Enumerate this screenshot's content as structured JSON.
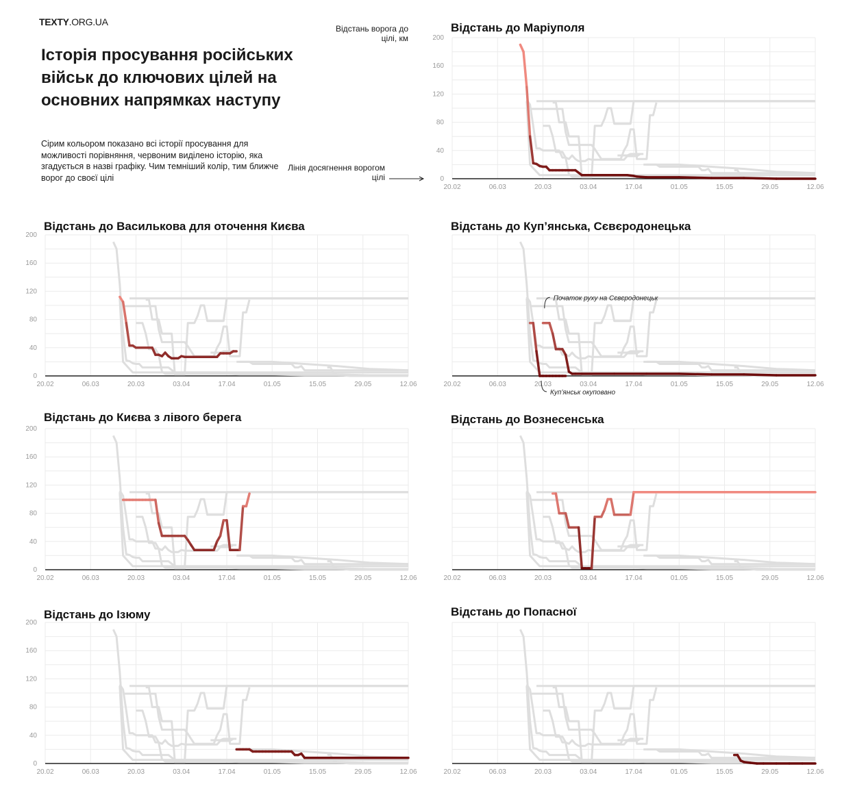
{
  "header": {
    "logo_bold": "TEXTY",
    "logo_rest": ".ORG.UA",
    "title": "Історія просування російських військ до ключових цілей на основних напрямках наступу",
    "subtitle": "Сірим кольором показано всі історії просування для можливості порівняння, червоним виділено історію, яка згадується в назві графіку. Чим темніший колір, тим ближче ворог до своєї цілі",
    "units_note": "Відстань ворога до цілі, км",
    "finish_line_note": "Лінія досягнення ворогом цілі"
  },
  "colors": {
    "background": "#ffffff",
    "grid": "#ebebeb",
    "baseline": "#222222",
    "context_series": "#dedede",
    "highlight_far": "#f08a80",
    "highlight_near": "#6b0a0a"
  },
  "chart_data": [
    {
      "type": "line",
      "title": "Відстань до Маріуполя",
      "highlight": "Маріуполь",
      "ylim": [
        0,
        200
      ],
      "yticks": [
        "200",
        "160",
        "120",
        "80",
        "40",
        "0"
      ],
      "xticks": [
        "20.02",
        "06.03",
        "20.03",
        "03.04",
        "17.04",
        "01.05",
        "15.05",
        "29.05",
        "12.06"
      ],
      "show_yticks": true,
      "annotations": []
    },
    {
      "type": "line",
      "title": "Відстань до Василькова для оточення Києва",
      "highlight": "Васильків",
      "ylim": [
        0,
        200
      ],
      "yticks": [
        "200",
        "160",
        "120",
        "80",
        "40",
        "0"
      ],
      "xticks": [
        "20.02",
        "06.03",
        "20.03",
        "03.04",
        "17.04",
        "01.05",
        "15.05",
        "29.05",
        "12.06"
      ],
      "show_yticks": true,
      "annotations": []
    },
    {
      "type": "line",
      "title": "Відстань до Куп’янська, Сєвєродонецька",
      "highlight": "Куп’янськ, Сєвєродонецьк",
      "ylim": [
        0,
        200
      ],
      "yticks": [],
      "xticks": [
        "20.02",
        "06.03",
        "20.03",
        "03.04",
        "17.04",
        "01.05",
        "15.05",
        "29.05",
        "12.06"
      ],
      "show_yticks": false,
      "annotations": [
        {
          "text": "Початок руху на Сєвєродонецьк",
          "x": 27,
          "y": 90,
          "pos": "above"
        },
        {
          "text": "Куп’янськ окуповано",
          "x": 26,
          "y": 0,
          "pos": "below"
        }
      ]
    },
    {
      "type": "line",
      "title": "Відстань до Києва з лівого берега",
      "highlight": "Київ (лівий берег)",
      "ylim": [
        0,
        200
      ],
      "yticks": [
        "200",
        "160",
        "120",
        "80",
        "40",
        "0"
      ],
      "xticks": [
        "20.02",
        "06.03",
        "20.03",
        "03.04",
        "17.04",
        "01.05",
        "15.05",
        "29.05",
        "12.06"
      ],
      "show_yticks": true,
      "annotations": []
    },
    {
      "type": "line",
      "title": "Відстань до Вознесенська",
      "highlight": "Вознесенськ",
      "ylim": [
        0,
        200
      ],
      "yticks": [],
      "xticks": [
        "20.02",
        "06.03",
        "20.03",
        "03.04",
        "17.04",
        "01.05",
        "15.05",
        "29.05",
        "12.06"
      ],
      "show_yticks": false,
      "annotations": []
    },
    {
      "type": "line",
      "title": "Відстань до Ізюму",
      "highlight": "Ізюм",
      "ylim": [
        0,
        200
      ],
      "yticks": [
        "200",
        "160",
        "120",
        "80",
        "40",
        "0"
      ],
      "xticks": [
        "20.02",
        "06.03",
        "20.03",
        "03.04",
        "17.04",
        "01.05",
        "15.05",
        "29.05",
        "12.06"
      ],
      "show_yticks": true,
      "annotations": []
    },
    {
      "type": "line",
      "title": "Відстань до Попасної",
      "highlight": "Попасна",
      "ylim": [
        0,
        200
      ],
      "yticks": [],
      "xticks": [
        "20.02",
        "06.03",
        "20.03",
        "03.04",
        "17.04",
        "01.05",
        "15.05",
        "29.05",
        "12.06"
      ],
      "show_yticks": false,
      "annotations": []
    }
  ],
  "series_data": {
    "x_note": "days since 20.02 (x=0 is 20.02, x=112 is 12.06)",
    "Маріуполь": [
      [
        21,
        190
      ],
      [
        22,
        180
      ],
      [
        23,
        130
      ],
      [
        24,
        60
      ],
      [
        25,
        22
      ],
      [
        26,
        21
      ],
      [
        27,
        18
      ],
      [
        28,
        17
      ],
      [
        29,
        17
      ],
      [
        30,
        12
      ],
      [
        31,
        12
      ],
      [
        32,
        12
      ],
      [
        33,
        12
      ],
      [
        34,
        12
      ],
      [
        35,
        12
      ],
      [
        36,
        12
      ],
      [
        37,
        12
      ],
      [
        38,
        12
      ],
      [
        40,
        5
      ],
      [
        42,
        5
      ],
      [
        44,
        5
      ],
      [
        46,
        5
      ],
      [
        48,
        5
      ],
      [
        50,
        5
      ],
      [
        52,
        5
      ],
      [
        54,
        5
      ],
      [
        56,
        4
      ],
      [
        57,
        3
      ],
      [
        60,
        2
      ],
      [
        70,
        2
      ],
      [
        80,
        1
      ],
      [
        90,
        1
      ],
      [
        100,
        0
      ],
      [
        112,
        0
      ]
    ],
    "Васильків": [
      [
        23,
        112
      ],
      [
        24,
        105
      ],
      [
        25,
        75
      ],
      [
        26,
        43
      ],
      [
        27,
        43
      ],
      [
        28,
        40
      ],
      [
        29,
        40
      ],
      [
        30,
        40
      ],
      [
        31,
        40
      ],
      [
        32,
        40
      ],
      [
        33,
        40
      ],
      [
        34,
        30
      ],
      [
        35,
        30
      ],
      [
        36,
        28
      ],
      [
        37,
        33
      ],
      [
        38,
        28
      ],
      [
        39,
        25
      ],
      [
        40,
        25
      ],
      [
        41,
        25
      ],
      [
        42,
        28
      ],
      [
        43,
        27
      ],
      [
        44,
        27
      ],
      [
        45,
        27
      ],
      [
        46,
        27
      ],
      [
        47,
        27
      ],
      [
        48,
        27
      ],
      [
        49,
        27
      ],
      [
        50,
        27
      ],
      [
        51,
        27
      ],
      [
        52,
        27
      ],
      [
        53,
        27
      ],
      [
        54,
        32
      ],
      [
        55,
        32
      ],
      [
        56,
        32
      ],
      [
        57,
        32
      ],
      [
        58,
        35
      ],
      [
        59,
        35
      ]
    ],
    "Куп’янськ, Сєвєродонецьк": [
      [
        24,
        75
      ],
      [
        25,
        75
      ],
      [
        26,
        35
      ],
      [
        27,
        0
      ],
      [
        28,
        0
      ],
      [
        29,
        0
      ],
      [
        30,
        0
      ],
      [
        31,
        0
      ],
      [
        32,
        0
      ],
      [
        33,
        0
      ],
      [
        34,
        0
      ],
      [
        35,
        0
      ]
    ],
    "Сєвєродонецьк": [
      [
        28,
        75
      ],
      [
        29,
        75
      ],
      [
        30,
        75
      ],
      [
        31,
        60
      ],
      [
        32,
        38
      ],
      [
        33,
        38
      ],
      [
        34,
        38
      ],
      [
        35,
        30
      ],
      [
        36,
        6
      ],
      [
        37,
        3
      ],
      [
        38,
        3
      ],
      [
        40,
        3
      ],
      [
        50,
        3
      ],
      [
        60,
        3
      ],
      [
        70,
        3
      ],
      [
        80,
        2
      ],
      [
        90,
        2
      ],
      [
        100,
        1
      ],
      [
        112,
        1
      ]
    ],
    "Київ (лівий берег)": [
      [
        24,
        99
      ],
      [
        25,
        99
      ],
      [
        26,
        99
      ],
      [
        27,
        99
      ],
      [
        28,
        99
      ],
      [
        29,
        99
      ],
      [
        30,
        99
      ],
      [
        31,
        99
      ],
      [
        32,
        99
      ],
      [
        33,
        99
      ],
      [
        34,
        99
      ],
      [
        35,
        66
      ],
      [
        36,
        48
      ],
      [
        37,
        48
      ],
      [
        38,
        48
      ],
      [
        39,
        48
      ],
      [
        40,
        48
      ],
      [
        41,
        48
      ],
      [
        42,
        48
      ],
      [
        43,
        48
      ],
      [
        44,
        42
      ],
      [
        45,
        35
      ],
      [
        46,
        28
      ],
      [
        47,
        28
      ],
      [
        48,
        28
      ],
      [
        49,
        28
      ],
      [
        50,
        28
      ],
      [
        51,
        28
      ],
      [
        52,
        28
      ],
      [
        53,
        40
      ],
      [
        54,
        48
      ],
      [
        55,
        70
      ],
      [
        56,
        70
      ],
      [
        57,
        28
      ],
      [
        58,
        28
      ],
      [
        59,
        28
      ],
      [
        60,
        28
      ],
      [
        61,
        90
      ],
      [
        62,
        90
      ],
      [
        63,
        108
      ]
    ],
    "Вознесенськ": [
      [
        31,
        108
      ],
      [
        32,
        108
      ],
      [
        33,
        80
      ],
      [
        34,
        80
      ],
      [
        35,
        80
      ],
      [
        36,
        60
      ],
      [
        37,
        60
      ],
      [
        38,
        60
      ],
      [
        39,
        60
      ],
      [
        40,
        2
      ],
      [
        41,
        2
      ],
      [
        42,
        2
      ],
      [
        43,
        2
      ],
      [
        44,
        75
      ],
      [
        45,
        75
      ],
      [
        46,
        75
      ],
      [
        47,
        85
      ],
      [
        48,
        100
      ],
      [
        49,
        100
      ],
      [
        50,
        78
      ],
      [
        51,
        78
      ],
      [
        52,
        78
      ],
      [
        53,
        78
      ],
      [
        54,
        78
      ],
      [
        55,
        78
      ],
      [
        56,
        110
      ],
      [
        58,
        110
      ],
      [
        60,
        110
      ],
      [
        62,
        110
      ],
      [
        64,
        110
      ],
      [
        66,
        110
      ],
      [
        68,
        110
      ],
      [
        70,
        110
      ],
      [
        72,
        110
      ],
      [
        74,
        110
      ],
      [
        76,
        110
      ],
      [
        78,
        110
      ],
      [
        80,
        110
      ],
      [
        82,
        110
      ],
      [
        84,
        110
      ],
      [
        86,
        110
      ],
      [
        88,
        110
      ],
      [
        90,
        110
      ],
      [
        92,
        110
      ],
      [
        94,
        110
      ],
      [
        96,
        110
      ],
      [
        98,
        110
      ],
      [
        100,
        110
      ],
      [
        102,
        110
      ],
      [
        104,
        110
      ],
      [
        106,
        110
      ],
      [
        108,
        110
      ],
      [
        110,
        110
      ],
      [
        112,
        110
      ]
    ],
    "Ізюм": [
      [
        59,
        20
      ],
      [
        60,
        20
      ],
      [
        61,
        20
      ],
      [
        62,
        20
      ],
      [
        63,
        20
      ],
      [
        64,
        17
      ],
      [
        65,
        17
      ],
      [
        66,
        17
      ],
      [
        67,
        17
      ],
      [
        68,
        17
      ],
      [
        69,
        17
      ],
      [
        70,
        17
      ],
      [
        71,
        17
      ],
      [
        72,
        17
      ],
      [
        73,
        17
      ],
      [
        74,
        17
      ],
      [
        75,
        17
      ],
      [
        76,
        17
      ],
      [
        77,
        12
      ],
      [
        78,
        12
      ],
      [
        79,
        14
      ],
      [
        80,
        8
      ],
      [
        81,
        8
      ],
      [
        82,
        8
      ],
      [
        84,
        8
      ],
      [
        88,
        8
      ],
      [
        92,
        8
      ],
      [
        96,
        8
      ],
      [
        100,
        8
      ],
      [
        104,
        8
      ],
      [
        108,
        8
      ],
      [
        112,
        8
      ]
    ],
    "Попасна": [
      [
        87,
        12
      ],
      [
        88,
        12
      ],
      [
        89,
        4
      ],
      [
        90,
        2
      ],
      [
        92,
        1
      ],
      [
        94,
        0
      ],
      [
        96,
        0
      ],
      [
        100,
        0
      ],
      [
        104,
        0
      ],
      [
        108,
        0
      ],
      [
        112,
        0
      ]
    ],
    "Other_A": [
      [
        26,
        110
      ],
      [
        27,
        110
      ],
      [
        28,
        110
      ],
      [
        29,
        110
      ],
      [
        30,
        110
      ],
      [
        31,
        110
      ],
      [
        32,
        110
      ],
      [
        33,
        110
      ],
      [
        34,
        110
      ],
      [
        35,
        110
      ],
      [
        36,
        110
      ],
      [
        37,
        110
      ],
      [
        38,
        110
      ],
      [
        39,
        110
      ],
      [
        40,
        110
      ],
      [
        41,
        110
      ],
      [
        42,
        110
      ],
      [
        43,
        110
      ],
      [
        44,
        110
      ],
      [
        45,
        110
      ],
      [
        46,
        110
      ],
      [
        47,
        110
      ],
      [
        48,
        110
      ],
      [
        49,
        110
      ],
      [
        50,
        110
      ],
      [
        51,
        110
      ],
      [
        52,
        110
      ],
      [
        53,
        110
      ],
      [
        54,
        110
      ],
      [
        55,
        110
      ],
      [
        56,
        110
      ],
      [
        57,
        110
      ],
      [
        58,
        110
      ],
      [
        59,
        110
      ],
      [
        60,
        110
      ],
      [
        61,
        110
      ],
      [
        62,
        110
      ],
      [
        63,
        110
      ],
      [
        64,
        110
      ],
      [
        65,
        110
      ],
      [
        66,
        110
      ],
      [
        67,
        110
      ],
      [
        68,
        110
      ],
      [
        69,
        110
      ],
      [
        70,
        110
      ],
      [
        71,
        110
      ],
      [
        72,
        110
      ],
      [
        73,
        110
      ],
      [
        74,
        110
      ],
      [
        75,
        110
      ],
      [
        76,
        110
      ],
      [
        77,
        110
      ],
      [
        78,
        110
      ],
      [
        79,
        110
      ],
      [
        80,
        110
      ],
      [
        81,
        110
      ],
      [
        82,
        110
      ],
      [
        83,
        110
      ],
      [
        84,
        110
      ],
      [
        85,
        110
      ],
      [
        86,
        110
      ],
      [
        87,
        110
      ],
      [
        88,
        110
      ],
      [
        89,
        110
      ],
      [
        90,
        110
      ],
      [
        91,
        110
      ],
      [
        92,
        110
      ],
      [
        93,
        110
      ],
      [
        94,
        110
      ],
      [
        95,
        110
      ],
      [
        96,
        110
      ],
      [
        97,
        110
      ],
      [
        98,
        110
      ],
      [
        99,
        110
      ],
      [
        100,
        110
      ],
      [
        101,
        110
      ],
      [
        102,
        110
      ],
      [
        103,
        110
      ],
      [
        104,
        110
      ],
      [
        105,
        110
      ],
      [
        106,
        110
      ],
      [
        107,
        110
      ],
      [
        108,
        110
      ],
      [
        109,
        110
      ],
      [
        110,
        110
      ],
      [
        111,
        110
      ],
      [
        112,
        110
      ]
    ],
    "Other_B": [
      [
        51,
        33
      ],
      [
        52,
        33
      ],
      [
        53,
        33
      ],
      [
        54,
        33
      ],
      [
        55,
        35
      ],
      [
        56,
        35
      ],
      [
        57,
        35
      ],
      [
        58,
        35
      ]
    ],
    "Other_C": [
      [
        60,
        20
      ],
      [
        70,
        20
      ],
      [
        80,
        17
      ],
      [
        90,
        14
      ],
      [
        100,
        10
      ],
      [
        112,
        8
      ]
    ],
    "Other_D": [
      [
        23,
        110
      ],
      [
        24,
        20
      ],
      [
        25,
        15
      ],
      [
        26,
        10
      ],
      [
        27,
        5
      ],
      [
        30,
        5
      ],
      [
        35,
        5
      ],
      [
        40,
        5
      ],
      [
        45,
        5
      ],
      [
        50,
        5
      ],
      [
        55,
        5
      ],
      [
        60,
        5
      ],
      [
        65,
        5
      ],
      [
        70,
        5
      ],
      [
        75,
        5
      ],
      [
        80,
        5
      ],
      [
        85,
        5
      ],
      [
        90,
        5
      ],
      [
        95,
        5
      ],
      [
        100,
        5
      ],
      [
        105,
        5
      ],
      [
        112,
        5
      ]
    ]
  }
}
